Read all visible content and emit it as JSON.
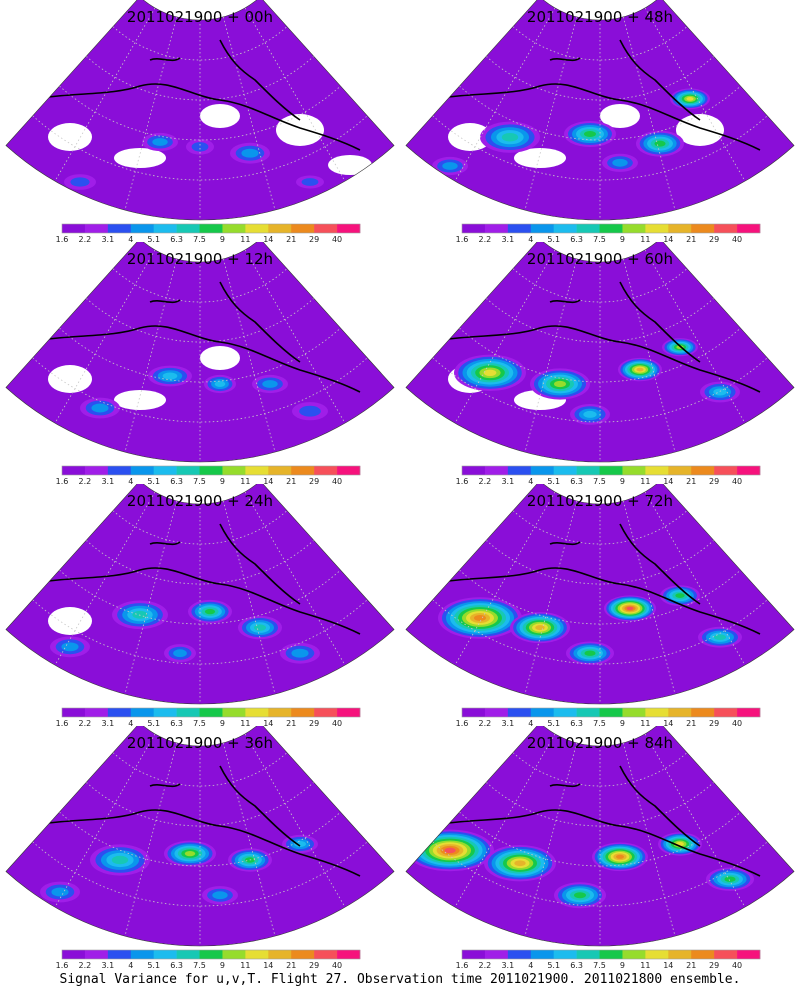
{
  "colorbar": {
    "labels": [
      "1.6",
      "2.2",
      "3.1",
      "4",
      "5.1",
      "6.3",
      "7.5",
      "9",
      "11",
      "14",
      "21",
      "29",
      "40"
    ],
    "colors": [
      "#8a0ed8",
      "#a01ee8",
      "#2b50f0",
      "#0a96ec",
      "#1cbcee",
      "#17c8b4",
      "#16c84a",
      "#96dc2c",
      "#e6de34",
      "#e6b42a",
      "#ec8a1e",
      "#f6505a",
      "#f6127c"
    ],
    "missing_color": "#ffffff",
    "frame_color": "#9e9e9e"
  },
  "panels": [
    {
      "id": "p00",
      "title": "2011021900 + 00h",
      "lead": "00h",
      "blobs": [
        [
          -40,
          45,
          18,
          7,
          3
        ],
        [
          0,
          48,
          14,
          6,
          2
        ],
        [
          50,
          52,
          20,
          8,
          3
        ],
        [
          -120,
          70,
          16,
          6,
          2
        ],
        [
          110,
          70,
          14,
          5,
          2
        ]
      ]
    },
    {
      "id": "p48",
      "title": "2011021900 + 48h",
      "lead": "48h",
      "blobs": [
        [
          -90,
          42,
          30,
          12,
          5
        ],
        [
          -10,
          40,
          26,
          10,
          6
        ],
        [
          60,
          46,
          24,
          10,
          6
        ],
        [
          90,
          18,
          20,
          8,
          8
        ],
        [
          20,
          58,
          18,
          7,
          3
        ],
        [
          -150,
          60,
          18,
          7,
          3
        ]
      ]
    },
    {
      "id": "p12",
      "title": "2011021900 + 12h",
      "lead": "12h",
      "blobs": [
        [
          -30,
          40,
          22,
          8,
          4
        ],
        [
          20,
          45,
          16,
          7,
          4
        ],
        [
          70,
          45,
          18,
          7,
          3
        ],
        [
          -100,
          60,
          20,
          8,
          3
        ],
        [
          110,
          62,
          18,
          7,
          2
        ]
      ]
    },
    {
      "id": "p60",
      "title": "2011021900 + 60h",
      "lead": "60h",
      "blobs": [
        [
          -110,
          38,
          36,
          14,
          8
        ],
        [
          -40,
          45,
          30,
          12,
          7
        ],
        [
          40,
          36,
          22,
          9,
          9
        ],
        [
          80,
          22,
          18,
          7,
          7
        ],
        [
          -10,
          64,
          20,
          8,
          4
        ],
        [
          120,
          50,
          20,
          8,
          4
        ]
      ]
    },
    {
      "id": "p24",
      "title": "2011021900 + 24h",
      "lead": "24h",
      "blobs": [
        [
          -60,
          38,
          28,
          11,
          5
        ],
        [
          10,
          36,
          22,
          9,
          6
        ],
        [
          60,
          46,
          22,
          9,
          5
        ],
        [
          -130,
          58,
          20,
          8,
          3
        ],
        [
          100,
          62,
          20,
          8,
          3
        ],
        [
          -20,
          62,
          16,
          7,
          3
        ]
      ]
    },
    {
      "id": "p72",
      "title": "2011021900 + 72h",
      "lead": "72h",
      "blobs": [
        [
          -120,
          40,
          42,
          16,
          10
        ],
        [
          -60,
          46,
          30,
          12,
          9
        ],
        [
          30,
          34,
          26,
          10,
          11
        ],
        [
          80,
          26,
          20,
          8,
          6
        ],
        [
          -10,
          62,
          24,
          9,
          6
        ],
        [
          120,
          52,
          22,
          8,
          5
        ]
      ]
    },
    {
      "id": "p36",
      "title": "2011021900 + 36h",
      "lead": "36h",
      "blobs": [
        [
          -80,
          40,
          30,
          12,
          5
        ],
        [
          -10,
          36,
          26,
          10,
          7
        ],
        [
          50,
          40,
          22,
          9,
          6
        ],
        [
          100,
          30,
          18,
          7,
          4
        ],
        [
          -140,
          60,
          20,
          8,
          3
        ],
        [
          20,
          62,
          18,
          7,
          3
        ]
      ]
    },
    {
      "id": "p84",
      "title": "2011021900 + 84h",
      "lead": "84h",
      "blobs": [
        [
          -150,
          34,
          44,
          16,
          11
        ],
        [
          -80,
          42,
          36,
          14,
          9
        ],
        [
          20,
          38,
          28,
          11,
          10
        ],
        [
          80,
          30,
          22,
          9,
          8
        ],
        [
          -20,
          62,
          26,
          10,
          6
        ],
        [
          130,
          52,
          24,
          9,
          6
        ]
      ]
    }
  ],
  "caption": "Signal Variance for u,v,T. Flight 27. Observation time 2011021900. 2011021800 ensemble."
}
